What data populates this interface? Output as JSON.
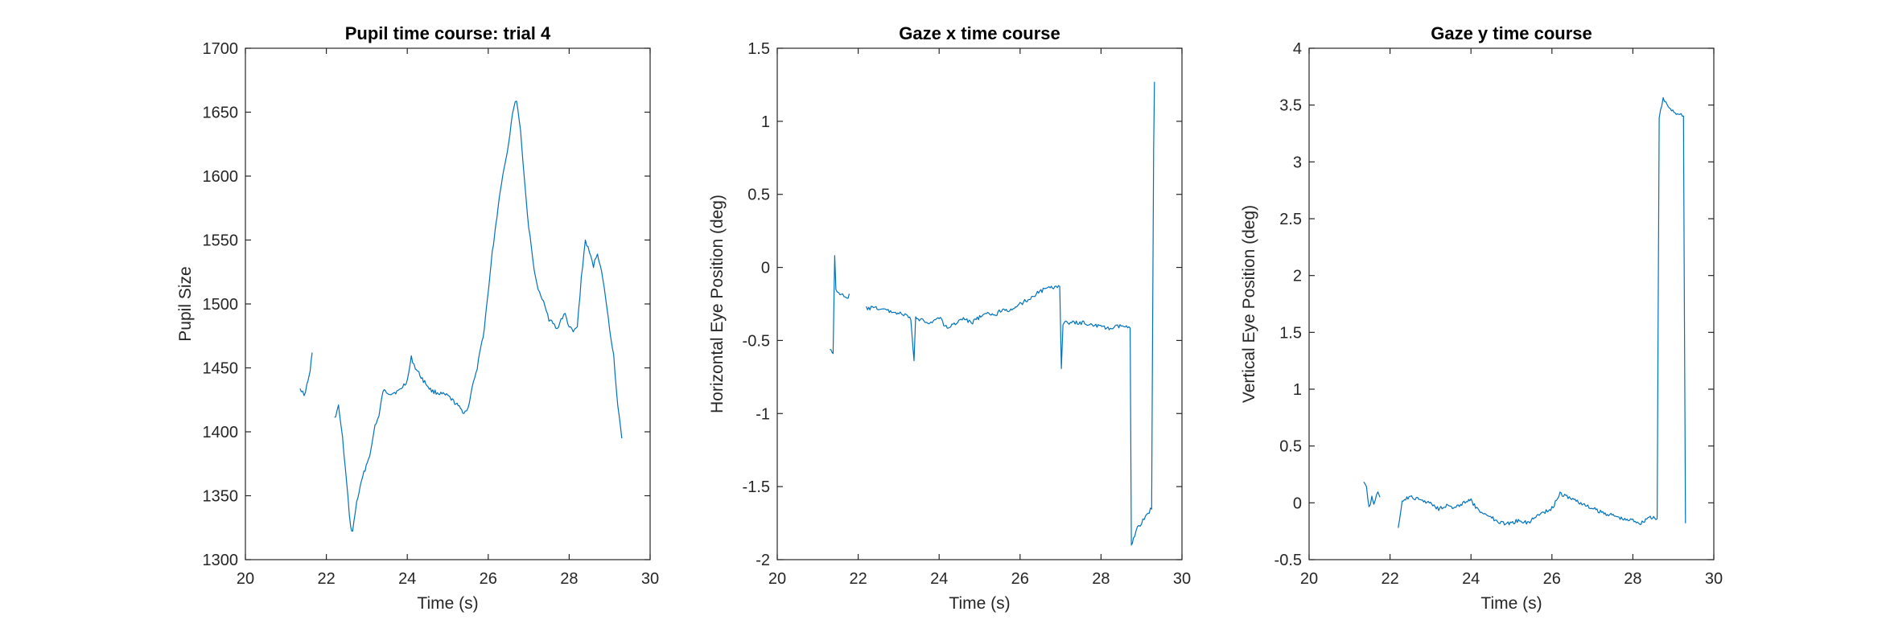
{
  "chart_data": [
    {
      "type": "line",
      "title": "Pupil time course: trial 4",
      "xlabel": "Time (s)",
      "ylabel": "Pupil Size",
      "xlim": [
        20,
        30
      ],
      "ylim": [
        1300,
        1700
      ],
      "xticks": [
        20,
        22,
        24,
        26,
        28,
        30
      ],
      "yticks": [
        1300,
        1350,
        1400,
        1450,
        1500,
        1550,
        1600,
        1650,
        1700
      ],
      "ytick_labels": [
        "1300",
        "1350",
        "1400",
        "1450",
        "1500",
        "1550",
        "1600",
        "1650",
        "1700"
      ],
      "color": "#0072BD",
      "series": [
        {
          "segments": [
            [
              [
                21.35,
                1435
              ],
              [
                21.45,
                1428
              ],
              [
                21.55,
                1440
              ],
              [
                21.6,
                1448
              ],
              [
                21.65,
                1462
              ]
            ],
            [
              [
                22.2,
                1410
              ],
              [
                22.3,
                1420
              ],
              [
                22.4,
                1395
              ],
              [
                22.5,
                1360
              ],
              [
                22.6,
                1325
              ],
              [
                22.65,
                1322
              ],
              [
                22.75,
                1345
              ],
              [
                22.9,
                1365
              ],
              [
                23.1,
                1385
              ],
              [
                23.2,
                1405
              ],
              [
                23.3,
                1412
              ],
              [
                23.4,
                1432
              ],
              [
                23.6,
                1430
              ],
              [
                23.8,
                1432
              ],
              [
                24.0,
                1440
              ],
              [
                24.1,
                1458
              ],
              [
                24.2,
                1450
              ],
              [
                24.4,
                1440
              ],
              [
                24.6,
                1432
              ],
              [
                24.8,
                1430
              ],
              [
                25.0,
                1428
              ],
              [
                25.2,
                1422
              ],
              [
                25.4,
                1415
              ],
              [
                25.5,
                1418
              ],
              [
                25.6,
                1435
              ],
              [
                25.7,
                1445
              ],
              [
                25.9,
                1480
              ],
              [
                26.1,
                1540
              ],
              [
                26.3,
                1590
              ],
              [
                26.5,
                1625
              ],
              [
                26.6,
                1650
              ],
              [
                26.7,
                1660
              ],
              [
                26.8,
                1635
              ],
              [
                26.9,
                1595
              ],
              [
                27.0,
                1560
              ],
              [
                27.1,
                1535
              ],
              [
                27.2,
                1515
              ],
              [
                27.3,
                1505
              ],
              [
                27.4,
                1500
              ],
              [
                27.5,
                1488
              ],
              [
                27.6,
                1485
              ],
              [
                27.7,
                1480
              ],
              [
                27.8,
                1488
              ],
              [
                27.9,
                1492
              ],
              [
                28.0,
                1482
              ],
              [
                28.1,
                1478
              ],
              [
                28.2,
                1482
              ],
              [
                28.3,
                1520
              ],
              [
                28.4,
                1550
              ],
              [
                28.5,
                1540
              ],
              [
                28.6,
                1530
              ],
              [
                28.7,
                1540
              ],
              [
                28.8,
                1525
              ],
              [
                28.9,
                1505
              ],
              [
                29.0,
                1480
              ],
              [
                29.1,
                1460
              ],
              [
                29.2,
                1420
              ],
              [
                29.3,
                1395
              ]
            ]
          ]
        }
      ]
    },
    {
      "type": "line",
      "title": "Gaze x time course",
      "xlabel": "Time (s)",
      "ylabel": "Horizontal Eye Position (deg)",
      "xlim": [
        20,
        30
      ],
      "ylim": [
        -2,
        1.5
      ],
      "xticks": [
        20,
        22,
        24,
        26,
        28,
        30
      ],
      "yticks": [
        -2,
        -1.5,
        -1,
        -0.5,
        0,
        0.5,
        1,
        1.5
      ],
      "ytick_labels": [
        "-2",
        "-1.5",
        "-1",
        "-0.5",
        "0",
        "0.5",
        "1",
        "1.5"
      ],
      "color": "#0072BD",
      "series": [
        {
          "segments": [
            [
              [
                21.3,
                -0.55
              ],
              [
                21.38,
                -0.6
              ],
              [
                21.42,
                0.08
              ],
              [
                21.45,
                -0.15
              ],
              [
                21.55,
                -0.18
              ],
              [
                21.65,
                -0.2
              ],
              [
                21.75,
                -0.22
              ],
              [
                21.78,
                -0.18
              ]
            ],
            [
              [
                22.2,
                -0.28
              ],
              [
                22.5,
                -0.28
              ],
              [
                22.8,
                -0.3
              ],
              [
                23.1,
                -0.32
              ],
              [
                23.3,
                -0.35
              ],
              [
                23.38,
                -0.65
              ],
              [
                23.42,
                -0.35
              ],
              [
                23.6,
                -0.36
              ],
              [
                23.8,
                -0.38
              ],
              [
                24.0,
                -0.34
              ],
              [
                24.2,
                -0.42
              ],
              [
                24.4,
                -0.38
              ],
              [
                24.6,
                -0.35
              ],
              [
                24.8,
                -0.38
              ],
              [
                25.0,
                -0.34
              ],
              [
                25.2,
                -0.32
              ],
              [
                25.4,
                -0.32
              ],
              [
                25.6,
                -0.28
              ],
              [
                25.8,
                -0.3
              ],
              [
                26.0,
                -0.25
              ],
              [
                26.2,
                -0.22
              ],
              [
                26.4,
                -0.18
              ],
              [
                26.6,
                -0.15
              ],
              [
                26.8,
                -0.14
              ],
              [
                26.98,
                -0.12
              ],
              [
                27.02,
                -0.7
              ],
              [
                27.06,
                -0.38
              ],
              [
                27.3,
                -0.38
              ],
              [
                27.6,
                -0.38
              ],
              [
                27.9,
                -0.4
              ],
              [
                28.2,
                -0.42
              ],
              [
                28.5,
                -0.4
              ],
              [
                28.72,
                -0.42
              ],
              [
                28.75,
                -1.9
              ],
              [
                28.8,
                -1.85
              ],
              [
                28.9,
                -1.78
              ],
              [
                29.0,
                -1.75
              ],
              [
                29.1,
                -1.7
              ],
              [
                29.25,
                -1.65
              ],
              [
                29.3,
                0.8
              ],
              [
                29.32,
                1.27
              ]
            ]
          ]
        }
      ]
    },
    {
      "type": "line",
      "title": "Gaze y time course",
      "xlabel": "Time (s)",
      "ylabel": "Vertical Eye Position (deg)",
      "xlim": [
        20,
        30
      ],
      "ylim": [
        -0.5,
        4
      ],
      "xticks": [
        20,
        22,
        24,
        26,
        28,
        30
      ],
      "yticks": [
        -0.5,
        0,
        0.5,
        1,
        1.5,
        2,
        2.5,
        3,
        3.5,
        4
      ],
      "ytick_labels": [
        "-0.5",
        "0",
        "0.5",
        "1",
        "1.5",
        "2",
        "2.5",
        "3",
        "3.5",
        "4"
      ],
      "color": "#0072BD",
      "series": [
        {
          "segments": [
            [
              [
                21.35,
                0.2
              ],
              [
                21.42,
                0.15
              ],
              [
                21.48,
                -0.05
              ],
              [
                21.55,
                0.05
              ],
              [
                21.6,
                0.0
              ],
              [
                21.7,
                0.08
              ],
              [
                21.75,
                0.05
              ]
            ],
            [
              [
                22.2,
                -0.22
              ],
              [
                22.3,
                0.02
              ],
              [
                22.5,
                0.05
              ],
              [
                22.8,
                0.02
              ],
              [
                23.0,
                0.0
              ],
              [
                23.2,
                -0.05
              ],
              [
                23.4,
                -0.02
              ],
              [
                23.6,
                -0.05
              ],
              [
                23.8,
                0.0
              ],
              [
                24.0,
                0.02
              ],
              [
                24.2,
                -0.08
              ],
              [
                24.4,
                -0.1
              ],
              [
                24.6,
                -0.15
              ],
              [
                24.8,
                -0.18
              ],
              [
                25.0,
                -0.18
              ],
              [
                25.2,
                -0.15
              ],
              [
                25.4,
                -0.18
              ],
              [
                25.6,
                -0.12
              ],
              [
                25.8,
                -0.08
              ],
              [
                26.0,
                -0.05
              ],
              [
                26.2,
                0.08
              ],
              [
                26.4,
                0.05
              ],
              [
                26.6,
                0.02
              ],
              [
                26.8,
                -0.02
              ],
              [
                27.0,
                -0.05
              ],
              [
                27.2,
                -0.08
              ],
              [
                27.4,
                -0.1
              ],
              [
                27.6,
                -0.12
              ],
              [
                27.8,
                -0.15
              ],
              [
                28.0,
                -0.15
              ],
              [
                28.2,
                -0.18
              ],
              [
                28.4,
                -0.12
              ],
              [
                28.6,
                -0.15
              ],
              [
                28.65,
                3.4
              ],
              [
                28.75,
                3.55
              ],
              [
                28.9,
                3.48
              ],
              [
                29.1,
                3.42
              ],
              [
                29.25,
                3.4
              ],
              [
                29.3,
                -0.18
              ]
            ]
          ]
        }
      ]
    }
  ]
}
